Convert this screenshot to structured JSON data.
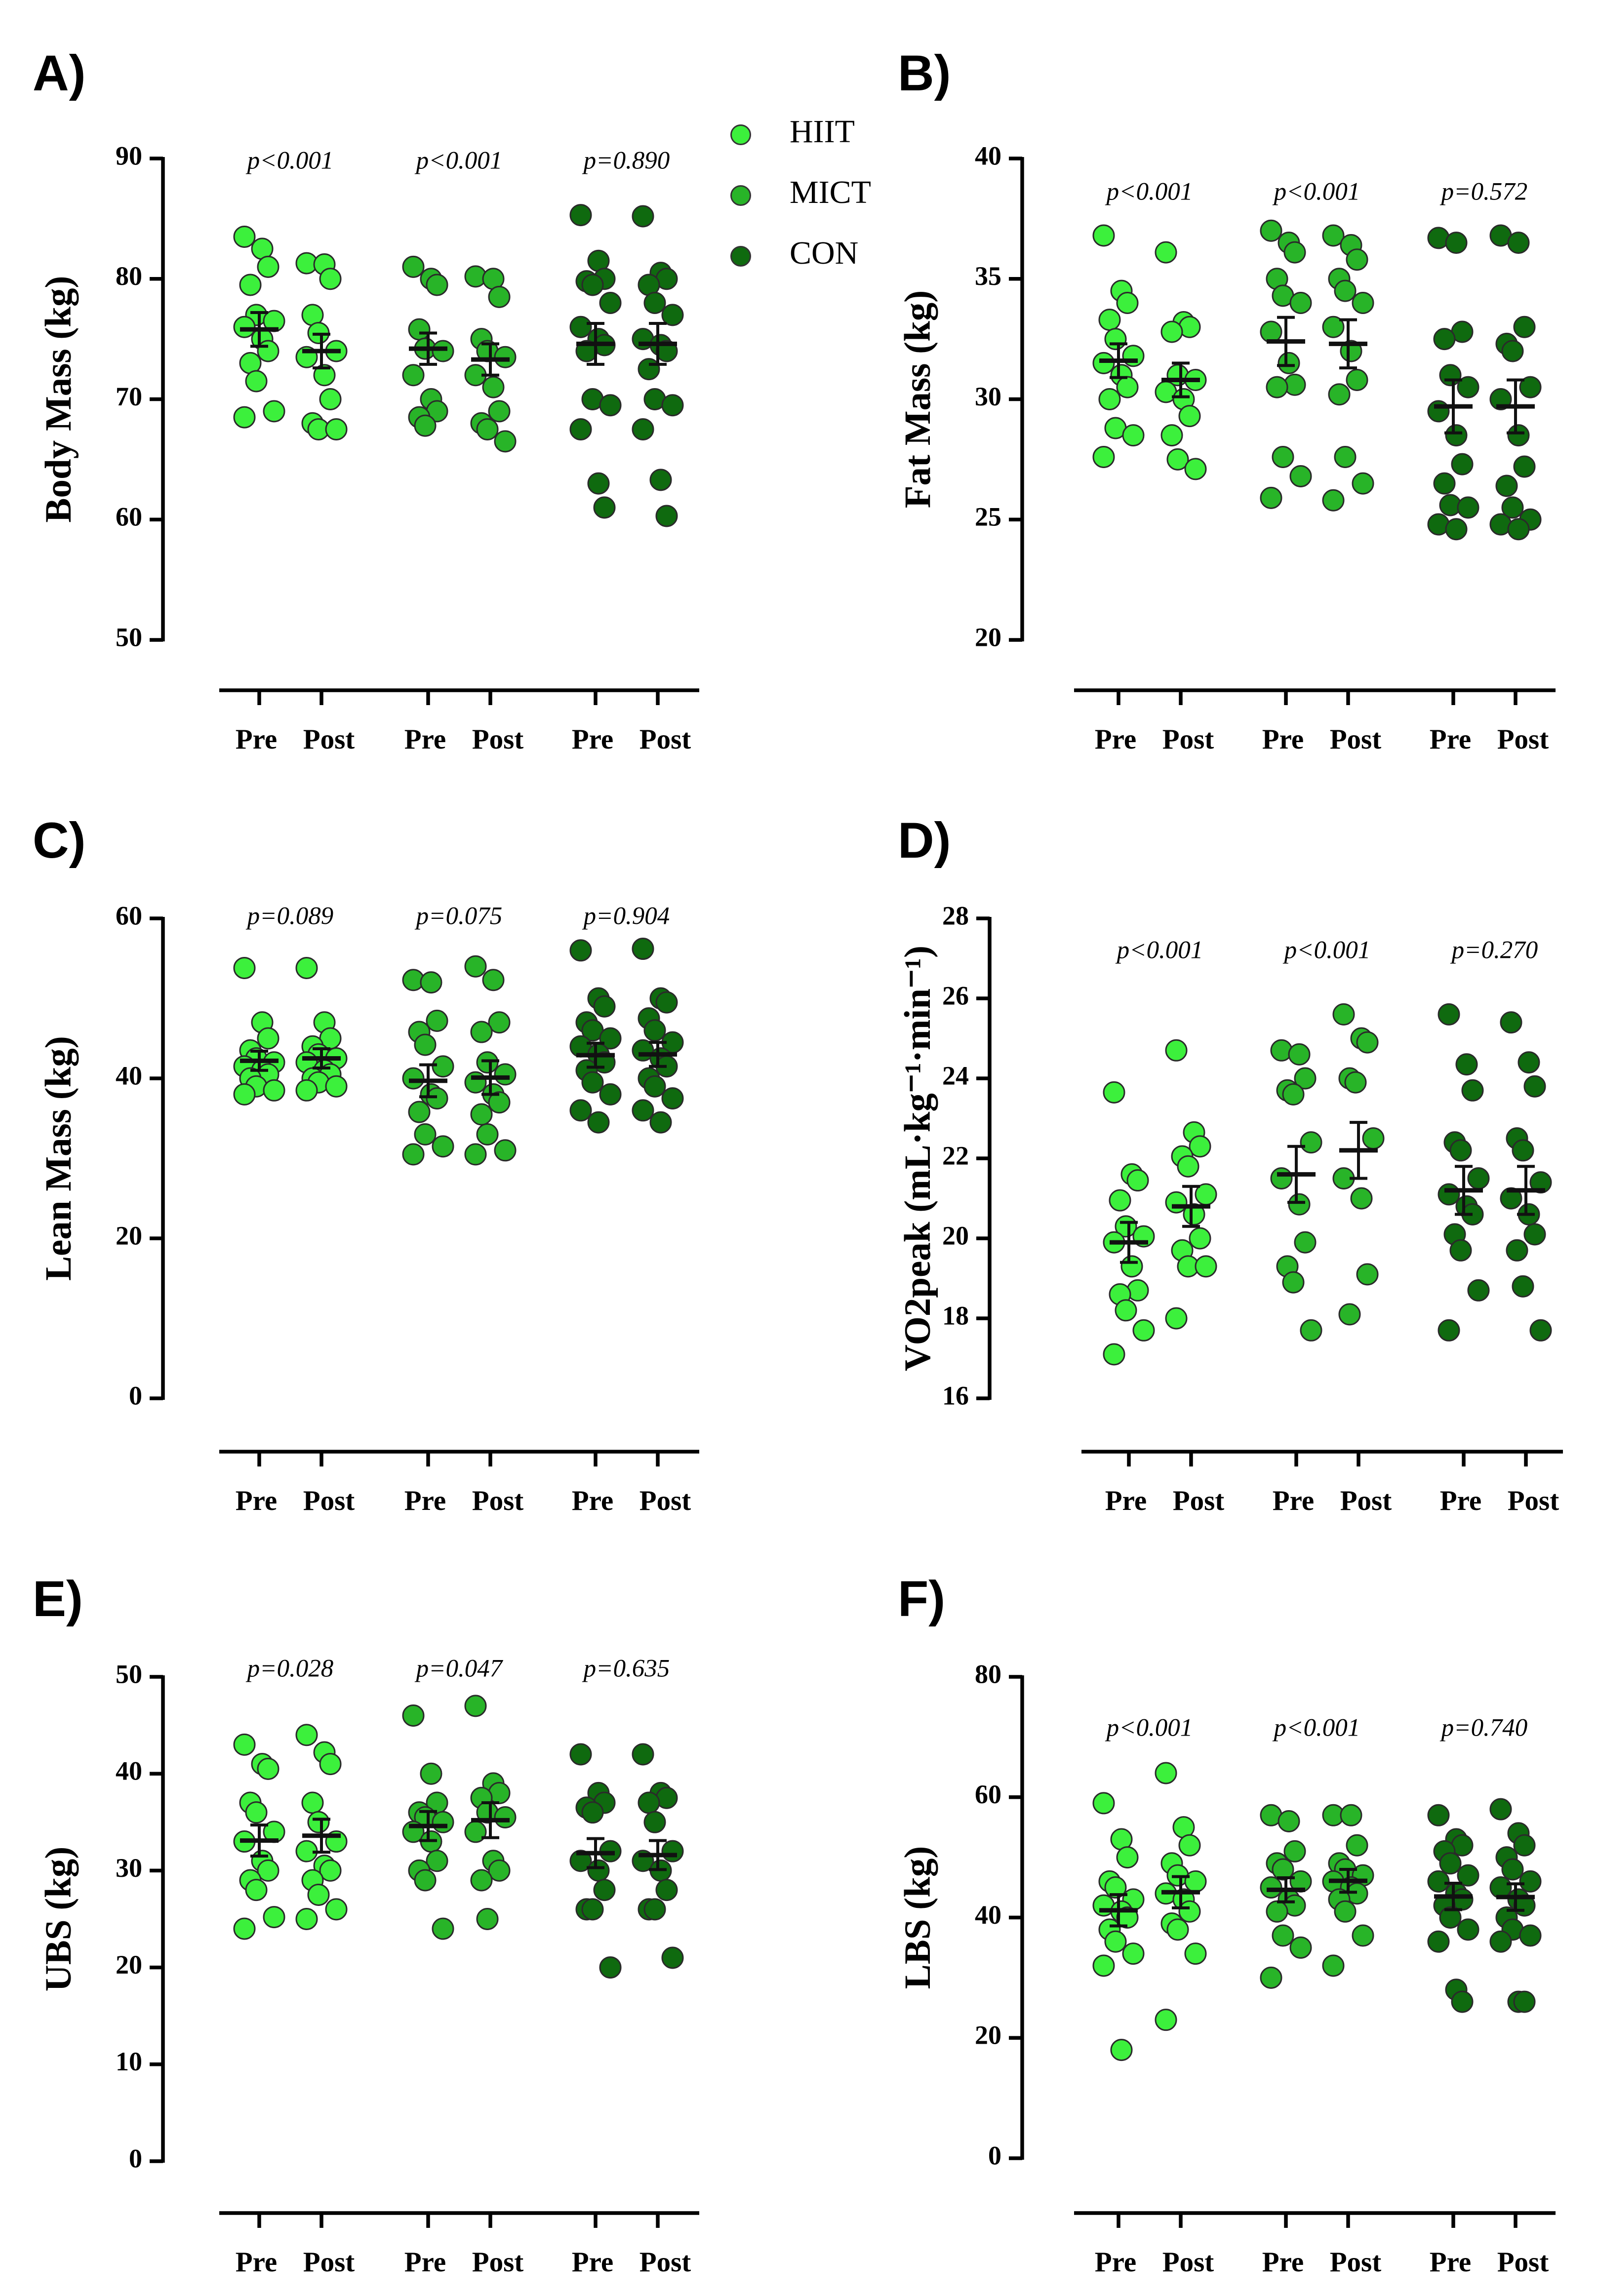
{
  "legend": [
    {
      "name": "HIIT",
      "color": "#3cf03c"
    },
    {
      "name": "MICT",
      "color": "#28b428"
    },
    {
      "name": "CON",
      "color": "#0f6a0f"
    }
  ],
  "conditions": [
    "Pre",
    "Post"
  ],
  "chart_data": [
    {
      "type": "dot",
      "label": "A)",
      "ylabel": "Body Mass (kg)",
      "ylim": [
        50,
        90
      ],
      "yticks": [
        50,
        60,
        70,
        80,
        90
      ],
      "series": [
        {
          "p_value": "p<0.001",
          "points": [
            [
              83.5,
              82.5,
              81,
              79.5,
              77,
              76.5,
              76,
              75,
              74,
              73,
              71.5,
              69,
              68.5
            ],
            [
              81.3,
              81.2,
              80,
              77,
              75.5,
              74,
              73.5,
              72,
              70,
              68,
              67.5,
              67.5
            ]
          ],
          "means": [
            75.8,
            74
          ],
          "sem": [
            1.4,
            1.4
          ]
        },
        {
          "p_value": "p<0.001",
          "points": [
            [
              81,
              80,
              79.5,
              75.8,
              74.2,
              74,
              72,
              70,
              69,
              68.5,
              67.8
            ],
            [
              80.2,
              80,
              78.5,
              75,
              74,
              73.5,
              72,
              71,
              69,
              68,
              67.5,
              66.5
            ]
          ],
          "means": [
            74.2,
            73.3
          ],
          "sem": [
            1.3,
            1.3
          ]
        },
        {
          "p_value": "p=0.890",
          "points": [
            [
              85.3,
              81.5,
              80,
              79.8,
              79.5,
              78,
              76,
              75,
              74.5,
              74,
              70,
              69.5,
              67.5,
              63,
              61
            ],
            [
              85.2,
              80.5,
              80,
              79.5,
              78,
              77,
              75,
              74.5,
              74,
              72.5,
              70,
              69.5,
              67.5,
              63.3,
              60.3
            ]
          ],
          "means": [
            74.6,
            74.6
          ],
          "sem": [
            1.7,
            1.7
          ]
        }
      ]
    },
    {
      "type": "dot",
      "label": "B)",
      "ylabel": "Fat Mass (kg)",
      "ylim": [
        20,
        40
      ],
      "yticks": [
        20,
        25,
        30,
        35,
        40
      ],
      "series": [
        {
          "p_value": "p<0.001",
          "points": [
            [
              36.8,
              34.5,
              34,
              33.3,
              32.5,
              31.8,
              31.5,
              31,
              30.5,
              30,
              28.8,
              28.5,
              27.6
            ],
            [
              36.1,
              33.2,
              33,
              32.8,
              31,
              30.8,
              30.3,
              30,
              29.3,
              28.5,
              27.5,
              27.1
            ]
          ],
          "means": [
            31.6,
            30.8
          ],
          "sem": [
            0.7,
            0.7
          ]
        },
        {
          "p_value": "p<0.001",
          "points": [
            [
              37,
              36.5,
              36.1,
              35,
              34.3,
              34,
              32.8,
              31.5,
              30.6,
              30.5,
              27.6,
              26.8,
              25.9
            ],
            [
              36.8,
              36.4,
              35.8,
              35,
              34.5,
              34,
              33,
              32,
              30.8,
              30.2,
              27.6,
              26.5,
              25.8
            ]
          ],
          "means": [
            32.4,
            32.3
          ],
          "sem": [
            1.0,
            1.0
          ]
        },
        {
          "p_value": "p=0.572",
          "points": [
            [
              36.7,
              36.5,
              32.8,
              32.5,
              31,
              30.5,
              29.5,
              28.5,
              27.3,
              26.5,
              25.6,
              25.5,
              24.8,
              24.6
            ],
            [
              36.8,
              36.5,
              33,
              32.3,
              32,
              30.5,
              30,
              28.5,
              27.2,
              26.4,
              25.5,
              25,
              24.8,
              24.6
            ]
          ],
          "means": [
            29.7,
            29.7
          ],
          "sem": [
            1.1,
            1.1
          ]
        }
      ]
    },
    {
      "type": "dot",
      "label": "C)",
      "ylabel": "Lean Mass (kg)",
      "ylim": [
        0,
        60
      ],
      "yticks": [
        0,
        20,
        40,
        60
      ],
      "series": [
        {
          "p_value": "p=0.089",
          "points": [
            [
              53.8,
              47,
              45,
              43.5,
              42.5,
              42,
              41.5,
              41,
              40.5,
              40,
              39,
              38.5,
              38
            ],
            [
              53.8,
              47,
              45,
              44,
              43,
              42.5,
              42,
              41,
              40.5,
              40,
              39.5,
              39,
              38.5
            ]
          ],
          "means": [
            42.2,
            42.5
          ],
          "sem": [
            1.2,
            1.2
          ]
        },
        {
          "p_value": "p=0.075",
          "points": [
            [
              52.3,
              52,
              47.2,
              45.8,
              44.2,
              41.5,
              40,
              38,
              37.5,
              35.8,
              33,
              31.5,
              30.5
            ],
            [
              54,
              52.3,
              47,
              45.8,
              42,
              40.5,
              39.5,
              38,
              37,
              35.5,
              33,
              31,
              30.5
            ]
          ],
          "means": [
            39.7,
            40.1
          ],
          "sem": [
            2.0,
            2.1
          ]
        },
        {
          "p_value": "p=0.904",
          "points": [
            [
              56,
              50,
              49,
              47,
              46,
              45,
              44,
              43,
              42,
              41,
              39.5,
              38,
              36,
              34.5
            ],
            [
              56.2,
              50,
              49.5,
              47.5,
              46,
              44.5,
              43.5,
              42.5,
              41.5,
              40,
              39,
              37.5,
              36,
              34.5
            ]
          ],
          "means": [
            42.9,
            43.0
          ],
          "sem": [
            1.5,
            1.5
          ]
        }
      ]
    },
    {
      "type": "dot",
      "label": "D)",
      "ylabel": "VO2peak (mL·kg⁻¹·min⁻¹)",
      "ylim": [
        16,
        28
      ],
      "yticks": [
        16,
        18,
        20,
        22,
        24,
        26,
        28
      ],
      "series": [
        {
          "p_value": "p<0.001",
          "points": [
            [
              23.65,
              21.6,
              21.45,
              20.95,
              20.3,
              20.05,
              19.9,
              19.3,
              18.7,
              18.6,
              18.2,
              17.7,
              17.1
            ],
            [
              24.7,
              22.65,
              22.3,
              22.05,
              21.8,
              21.1,
              20.9,
              20.6,
              20,
              19.7,
              19.3,
              19.3,
              18
            ]
          ],
          "means": [
            19.9,
            20.8
          ],
          "sem": [
            0.5,
            0.5
          ]
        },
        {
          "p_value": "p<0.001",
          "points": [
            [
              24.7,
              24.6,
              24,
              23.7,
              23.6,
              22.4,
              21.5,
              20.85,
              19.9,
              19.3,
              18.9,
              17.7
            ],
            [
              25.6,
              25,
              24.9,
              24,
              23.9,
              22.5,
              21.5,
              21,
              19.1,
              18.1
            ]
          ],
          "means": [
            21.6,
            22.2
          ],
          "sem": [
            0.7,
            0.7
          ]
        },
        {
          "p_value": "p=0.270",
          "points": [
            [
              25.6,
              24.35,
              23.7,
              22.4,
              22.2,
              21.5,
              21.1,
              20.8,
              20.6,
              20.1,
              19.7,
              18.7,
              17.7
            ],
            [
              25.4,
              24.4,
              23.8,
              22.5,
              22.2,
              21.4,
              21,
              20.6,
              20.1,
              19.7,
              18.8,
              17.7
            ]
          ],
          "means": [
            21.2,
            21.2
          ],
          "sem": [
            0.6,
            0.6
          ]
        }
      ]
    },
    {
      "type": "dot",
      "label": "E)",
      "ylabel": "UBS (kg)",
      "ylim": [
        0,
        50
      ],
      "yticks": [
        0,
        10,
        20,
        30,
        40,
        50
      ],
      "series": [
        {
          "p_value": "p=0.028",
          "points": [
            [
              43,
              41,
              40.5,
              37,
              36,
              34,
              33,
              31,
              30,
              29,
              28,
              25.2,
              24
            ],
            [
              44,
              42.2,
              41,
              37,
              35,
              33,
              32,
              30.5,
              30,
              29,
              27.5,
              26,
              25
            ]
          ],
          "means": [
            33.1,
            33.6
          ],
          "sem": [
            1.6,
            1.7
          ]
        },
        {
          "p_value": "p=0.047",
          "points": [
            [
              46,
              40,
              37,
              36,
              35.5,
              35,
              34,
              33,
              31,
              30,
              29,
              24
            ],
            [
              47,
              39,
              38,
              37.5,
              36,
              35.5,
              34,
              31,
              30,
              29,
              25
            ]
          ],
          "means": [
            34.6,
            35.2
          ],
          "sem": [
            1.5,
            1.8
          ]
        },
        {
          "p_value": "p=0.635",
          "points": [
            [
              42,
              38,
              37,
              36.5,
              36,
              32,
              31,
              30,
              28,
              26,
              26,
              20
            ],
            [
              42,
              38,
              37.5,
              37,
              35,
              32,
              31,
              30,
              28,
              26,
              26,
              21
            ]
          ],
          "means": [
            31.8,
            31.6
          ],
          "sem": [
            1.5,
            1.5
          ]
        }
      ]
    },
    {
      "type": "dot",
      "label": "F)",
      "ylabel": "LBS (kg)",
      "ylim": [
        0,
        80
      ],
      "yticks": [
        0,
        20,
        40,
        60,
        80
      ],
      "series": [
        {
          "p_value": "p<0.001",
          "points": [
            [
              59,
              53,
              50,
              46,
              45,
              43,
              42,
              41,
              40,
              38,
              36,
              34,
              32,
              18
            ],
            [
              64,
              55,
              52,
              49,
              47,
              46,
              44,
              43,
              41,
              39,
              38,
              34,
              23
            ]
          ],
          "means": [
            41.2,
            44.2
          ],
          "sem": [
            2.6,
            2.6
          ]
        },
        {
          "p_value": "p<0.001",
          "points": [
            [
              57,
              56,
              51,
              49,
              48,
              46,
              45,
              43,
              42,
              41,
              37,
              35,
              30
            ],
            [
              57,
              57,
              52,
              49,
              48,
              47,
              46,
              45,
              44,
              43,
              41,
              37,
              32
            ]
          ],
          "means": [
            44.6,
            46.1
          ],
          "sem": [
            2.0,
            1.9
          ]
        },
        {
          "p_value": "p=0.740",
          "points": [
            [
              57,
              53,
              52,
              51,
              49,
              47,
              46,
              44,
              43,
              42,
              40,
              38,
              36,
              28,
              26
            ],
            [
              58,
              54,
              52,
              50,
              48,
              46,
              45,
              43,
              42,
              40,
              38,
              37,
              36,
              26,
              26
            ]
          ],
          "means": [
            43.5,
            43.4
          ],
          "sem": [
            2.2,
            2.2
          ]
        }
      ]
    }
  ]
}
